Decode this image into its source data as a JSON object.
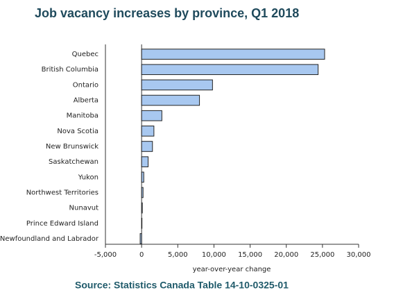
{
  "chart_data": {
    "type": "hbar",
    "title": "Job vacancy increases by province, Q1 2018",
    "x_label": "year-over-year change",
    "source": "Source: Statistics Canada Table 14-10-0325-01",
    "categories": [
      "Quebec",
      "British Columbia",
      "Ontario",
      "Alberta",
      "Manitoba",
      "Nova Scotia",
      "New Brunswick",
      "Saskatchewan",
      "Yukon",
      "Northwest Territories",
      "Nunavut",
      "Prince Edward Island",
      "Newfoundland and Labrador"
    ],
    "values": [
      25300,
      24400,
      9800,
      8000,
      2800,
      1700,
      1500,
      900,
      300,
      200,
      100,
      50,
      -200
    ],
    "color": "#a8c8f0",
    "xlim": [
      -5000,
      30000
    ],
    "xticks": [
      {
        "value": -5000,
        "label": "-5,000"
      },
      0,
      {
        "value": 5000,
        "label": "5,000"
      },
      {
        "value": 10000,
        "label": "10,000"
      },
      {
        "value": 15000,
        "label": "15,000"
      },
      {
        "value": 20000,
        "label": "20,000"
      },
      {
        "value": 25000,
        "label": "25,000"
      },
      {
        "value": 30000,
        "label": "30,000"
      }
    ]
  }
}
